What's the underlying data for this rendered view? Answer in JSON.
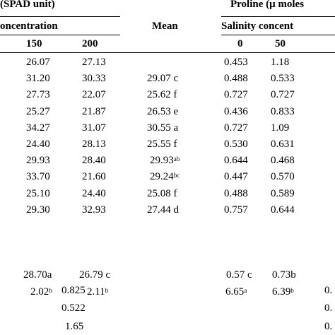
{
  "header": {
    "spad_title": "(SPAD unit)",
    "proline_title": "Proline (μ moles",
    "concentration_label": "oncentration",
    "mean_label": "Mean",
    "salinity_label": "Salinity concent",
    "col_150": "150",
    "col_200": "200",
    "col_0": "0",
    "col_50": "50"
  },
  "rows": [
    {
      "c150": "26.07",
      "c200": "27.13",
      "mean": "",
      "p0": "0.453",
      "p50": "1.18"
    },
    {
      "c150": "31.20",
      "c200": "30.33",
      "mean": "29.07 c",
      "p0": "0.488",
      "p50": "0.533"
    },
    {
      "c150": "27.73",
      "c200": "22.07",
      "mean": "25.62 f",
      "p0": "0.727",
      "p50": "0.727"
    },
    {
      "c150": "25.27",
      "c200": "21.87",
      "mean": "26.53 e",
      "p0": "0.436",
      "p50": "0.833"
    },
    {
      "c150": "34.27",
      "c200": "31.07",
      "mean": "30.55 a",
      "p0": "0.727",
      "p50": "1.09"
    },
    {
      "c150": "24.40",
      "c200": "28.13",
      "mean": "25.55 f",
      "p0": "0.530",
      "p50": "0.631"
    },
    {
      "c150": "29.93",
      "c200": "28.40",
      "mean": "29.93",
      "mean_sup": "ab",
      "p0": "0.644",
      "p50": "0.468"
    },
    {
      "c150": "33.70",
      "c200": "21.60",
      "mean": "29.24",
      "mean_sup": "bc",
      "p0": "0.447",
      "p50": "0.570"
    },
    {
      "c150": "25.10",
      "c200": "24.40",
      "mean": "25.08 f",
      "p0": "0.488",
      "p50": "0.589"
    },
    {
      "c150": "29.30",
      "c200": "32.93",
      "mean": "27.44 d",
      "p0": "0.757",
      "p50": "0.644"
    }
  ],
  "means_row": {
    "c150": "28.70a",
    "c200": "26.79 c",
    "p0": "0.57 c",
    "p50": "0.73b"
  },
  "sup_row": {
    "c150": "2.02",
    "c150_sup": "b",
    "c200": "2.11",
    "c200_sup": "b",
    "p0": "6.65",
    "p0_sup": "a",
    "p50": "6.39",
    "p50_sup": "b"
  },
  "lsd_values": [
    "0.825",
    "0.522",
    "1.65"
  ],
  "right_edge_values": [
    "0.",
    "0.",
    "0."
  ]
}
